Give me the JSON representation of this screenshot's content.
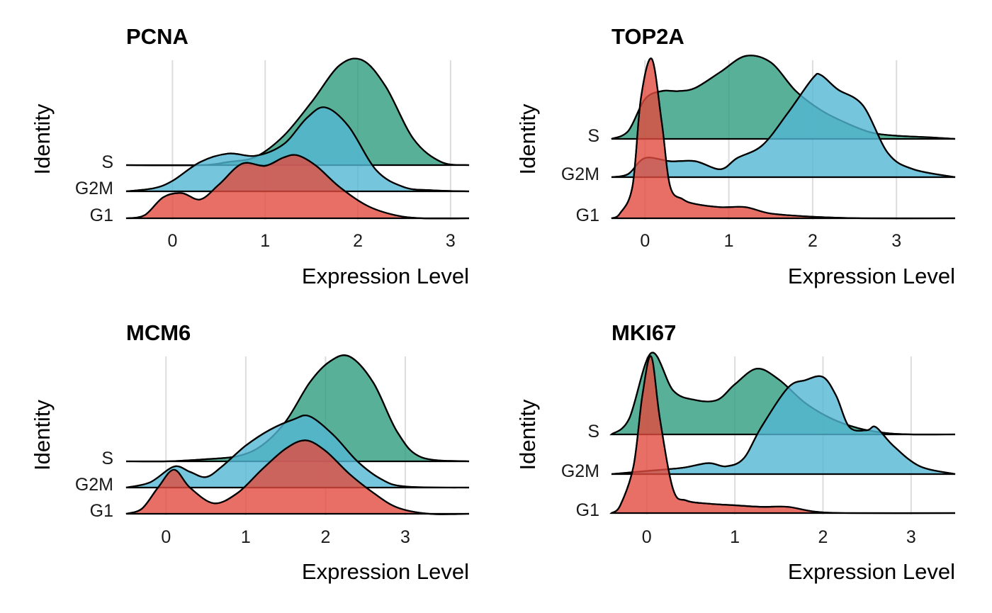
{
  "figure": {
    "y_axis_title": "Identity",
    "x_axis_title": "Expression Level"
  },
  "colors": {
    "S": "#2F9C7E",
    "G2M": "#53B7D3",
    "G1": "#E24B3F"
  },
  "chart_data": [
    {
      "type": "ridgeline",
      "title": "PCNA",
      "xlabel": "Expression Level",
      "ylabel": "Identity",
      "xlim": [
        -0.5,
        3.2
      ],
      "xticks": [
        0,
        1,
        2,
        3
      ],
      "categories": [
        "G1",
        "G2M",
        "S"
      ],
      "series": [
        {
          "name": "S",
          "x": [
            -0.5,
            0.3,
            0.6,
            0.9,
            1.2,
            1.5,
            1.8,
            2.05,
            2.3,
            2.6,
            2.9,
            3.2
          ],
          "density": [
            0.0,
            0.0,
            0.03,
            0.08,
            0.28,
            0.6,
            0.95,
            1.0,
            0.75,
            0.25,
            0.03,
            0.0
          ]
        },
        {
          "name": "G2M",
          "x": [
            -0.5,
            -0.2,
            0.0,
            0.3,
            0.6,
            0.9,
            1.2,
            1.45,
            1.65,
            1.9,
            2.2,
            2.5,
            2.8,
            3.2
          ],
          "density": [
            0.0,
            0.03,
            0.1,
            0.28,
            0.36,
            0.34,
            0.45,
            0.7,
            0.8,
            0.62,
            0.2,
            0.04,
            0.01,
            0.0
          ]
        },
        {
          "name": "G1",
          "x": [
            -0.5,
            -0.3,
            -0.1,
            0.1,
            0.3,
            0.5,
            0.75,
            1.0,
            1.2,
            1.35,
            1.55,
            1.8,
            2.1,
            2.4,
            2.7,
            3.2
          ],
          "density": [
            0.0,
            0.03,
            0.2,
            0.24,
            0.18,
            0.32,
            0.52,
            0.5,
            0.58,
            0.6,
            0.5,
            0.3,
            0.12,
            0.03,
            0.0,
            0.0
          ]
        }
      ]
    },
    {
      "type": "ridgeline",
      "title": "TOP2A",
      "xlabel": "Expression Level",
      "ylabel": "Identity",
      "xlim": [
        -0.4,
        3.7
      ],
      "xticks": [
        0,
        1,
        2,
        3
      ],
      "categories": [
        "G1",
        "G2M",
        "S"
      ],
      "series": [
        {
          "name": "S",
          "x": [
            -0.4,
            -0.2,
            0.0,
            0.2,
            0.4,
            0.6,
            0.9,
            1.2,
            1.5,
            1.8,
            2.1,
            2.4,
            2.7,
            3.0,
            3.4,
            3.7
          ],
          "density": [
            0.0,
            0.05,
            0.25,
            0.3,
            0.3,
            0.32,
            0.42,
            0.52,
            0.48,
            0.3,
            0.18,
            0.1,
            0.04,
            0.02,
            0.01,
            0.0
          ]
        },
        {
          "name": "G2M",
          "x": [
            -0.4,
            -0.2,
            0.0,
            0.3,
            0.6,
            0.9,
            1.1,
            1.4,
            1.7,
            2.0,
            2.1,
            2.3,
            2.6,
            2.9,
            3.2,
            3.7
          ],
          "density": [
            0.0,
            0.02,
            0.12,
            0.1,
            0.1,
            0.05,
            0.12,
            0.2,
            0.4,
            0.62,
            0.64,
            0.55,
            0.45,
            0.15,
            0.05,
            0.0
          ]
        },
        {
          "name": "G1",
          "x": [
            -0.4,
            -0.3,
            -0.15,
            -0.05,
            0.08,
            0.2,
            0.3,
            0.45,
            0.6,
            0.9,
            1.2,
            1.5,
            2.0,
            2.6,
            3.7
          ],
          "density": [
            0.0,
            0.03,
            0.2,
            0.75,
            1.0,
            0.6,
            0.2,
            0.12,
            0.09,
            0.07,
            0.07,
            0.03,
            0.01,
            0.0,
            0.0
          ]
        }
      ]
    },
    {
      "type": "ridgeline",
      "title": "MCM6",
      "xlabel": "Expression Level",
      "ylabel": "Identity",
      "xlim": [
        -0.5,
        3.8
      ],
      "xticks": [
        0,
        1,
        2,
        3
      ],
      "categories": [
        "G1",
        "G2M",
        "S"
      ],
      "series": [
        {
          "name": "S",
          "x": [
            -0.5,
            0.0,
            0.5,
            0.9,
            1.2,
            1.5,
            1.8,
            2.05,
            2.3,
            2.6,
            2.9,
            3.2,
            3.8
          ],
          "density": [
            0.0,
            0.0,
            0.02,
            0.05,
            0.15,
            0.38,
            0.75,
            0.95,
            1.0,
            0.75,
            0.28,
            0.04,
            0.0
          ],
          "baseline_left": 0
        },
        {
          "name": "G2M",
          "x": [
            -0.5,
            -0.2,
            0.1,
            0.3,
            0.5,
            0.7,
            1.0,
            1.3,
            1.6,
            1.8,
            2.1,
            2.4,
            2.7,
            3.0,
            3.8
          ],
          "density": [
            0.0,
            0.05,
            0.2,
            0.15,
            0.1,
            0.2,
            0.4,
            0.55,
            0.65,
            0.68,
            0.5,
            0.25,
            0.08,
            0.01,
            0.0
          ]
        },
        {
          "name": "G1",
          "x": [
            -0.5,
            -0.3,
            -0.1,
            0.1,
            0.3,
            0.6,
            0.9,
            1.2,
            1.5,
            1.75,
            2.0,
            2.3,
            2.6,
            2.9,
            3.3,
            3.8
          ],
          "density": [
            0.0,
            0.05,
            0.25,
            0.42,
            0.25,
            0.1,
            0.2,
            0.42,
            0.62,
            0.7,
            0.6,
            0.38,
            0.2,
            0.06,
            0.0,
            0.0
          ]
        }
      ]
    },
    {
      "type": "ridgeline",
      "title": "MKI67",
      "xlabel": "Expression Level",
      "ylabel": "Identity",
      "xlim": [
        -0.4,
        3.5
      ],
      "xticks": [
        0,
        1,
        2,
        3
      ],
      "categories": [
        "G1",
        "G2M",
        "S"
      ],
      "series": [
        {
          "name": "S",
          "x": [
            -0.4,
            -0.2,
            0.05,
            0.3,
            0.55,
            0.8,
            1.0,
            1.25,
            1.5,
            1.8,
            2.1,
            2.4,
            2.7,
            3.0,
            3.5
          ],
          "density": [
            0.0,
            0.1,
            0.52,
            0.28,
            0.22,
            0.22,
            0.32,
            0.42,
            0.35,
            0.2,
            0.1,
            0.04,
            0.01,
            0.0,
            0.0
          ]
        },
        {
          "name": "G2M",
          "x": [
            -0.4,
            0.0,
            0.4,
            0.7,
            0.9,
            1.1,
            1.3,
            1.6,
            1.8,
            2.0,
            2.15,
            2.3,
            2.5,
            2.6,
            2.8,
            3.1,
            3.5
          ],
          "density": [
            0.0,
            0.02,
            0.04,
            0.07,
            0.05,
            0.1,
            0.3,
            0.55,
            0.6,
            0.62,
            0.5,
            0.3,
            0.28,
            0.3,
            0.18,
            0.05,
            0.0
          ]
        },
        {
          "name": "G1",
          "x": [
            -0.4,
            -0.3,
            -0.15,
            -0.05,
            0.05,
            0.15,
            0.3,
            0.45,
            0.7,
            1.0,
            1.3,
            1.6,
            1.9,
            2.3,
            3.5
          ],
          "density": [
            0.0,
            0.05,
            0.3,
            0.75,
            1.0,
            0.6,
            0.15,
            0.08,
            0.06,
            0.05,
            0.04,
            0.04,
            0.01,
            0.0,
            0.0
          ]
        }
      ]
    }
  ]
}
